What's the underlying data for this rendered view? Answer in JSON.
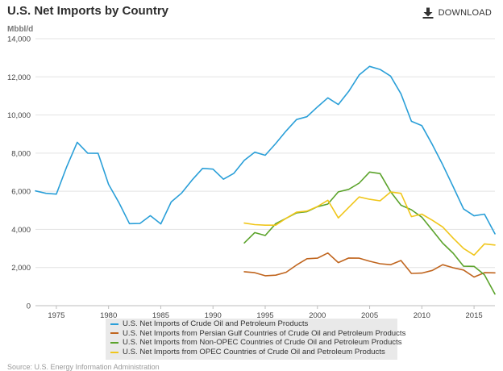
{
  "header": {
    "title": "U.S. Net Imports by Country",
    "download_label": "DOWNLOAD"
  },
  "footer": {
    "source": "Source: U.S. Energy Information Administration"
  },
  "chart_data": {
    "type": "line",
    "ylabel": "Mbbl/d",
    "xlim": [
      1973,
      2017
    ],
    "ylim": [
      0,
      14000
    ],
    "x_ticks": [
      1975,
      1980,
      1985,
      1990,
      1995,
      2000,
      2005,
      2010,
      2015
    ],
    "y_ticks": [
      0,
      2000,
      4000,
      6000,
      8000,
      10000,
      12000,
      14000
    ],
    "y_tick_labels": [
      "0",
      "2,000",
      "4,000",
      "6,000",
      "8,000",
      "10,000",
      "12,000",
      "14,000"
    ],
    "grid": "horizontal",
    "legend_position": "bottom",
    "series": [
      {
        "name": "U.S. Net Imports of Crude Oil and Petroleum Products",
        "color": "#2a9fd8",
        "x": [
          1973,
          1974,
          1975,
          1976,
          1977,
          1978,
          1979,
          1980,
          1981,
          1982,
          1983,
          1984,
          1985,
          1986,
          1987,
          1988,
          1989,
          1990,
          1991,
          1992,
          1993,
          1994,
          1995,
          1996,
          1997,
          1998,
          1999,
          2000,
          2001,
          2002,
          2003,
          2004,
          2005,
          2006,
          2007,
          2008,
          2009,
          2010,
          2011,
          2012,
          2013,
          2014,
          2015,
          2016,
          2017
        ],
        "values": [
          6020,
          5890,
          5850,
          7300,
          8570,
          8000,
          7990,
          6360,
          5400,
          4300,
          4310,
          4720,
          4290,
          5440,
          5910,
          6590,
          7200,
          7160,
          6630,
          6940,
          7620,
          8050,
          7890,
          8500,
          9160,
          9760,
          9910,
          10420,
          10900,
          10550,
          11240,
          12100,
          12550,
          12390,
          12040,
          11110,
          9670,
          9440,
          8450,
          7390,
          6240,
          5070,
          4710,
          4800,
          3770
        ]
      },
      {
        "name": "U.S. Net Imports from Persian Gulf Countries of Crude Oil and Petroleum Products",
        "color": "#c0651e",
        "x": [
          1993,
          1994,
          1995,
          1996,
          1997,
          1998,
          1999,
          2000,
          2001,
          2002,
          2003,
          2004,
          2005,
          2006,
          2007,
          2008,
          2009,
          2010,
          2011,
          2012,
          2013,
          2014,
          2015,
          2016,
          2017
        ],
        "values": [
          1780,
          1730,
          1570,
          1600,
          1750,
          2130,
          2460,
          2490,
          2760,
          2260,
          2500,
          2490,
          2330,
          2200,
          2150,
          2370,
          1690,
          1710,
          1850,
          2150,
          1990,
          1870,
          1500,
          1730,
          1720
        ]
      },
      {
        "name": "U.S. Net Imports from Non-OPEC Countries of Crude Oil and Petroleum Products",
        "color": "#5ba32b",
        "x": [
          1993,
          1994,
          1995,
          1996,
          1997,
          1998,
          1999,
          2000,
          2001,
          2002,
          2003,
          2004,
          2005,
          2006,
          2007,
          2008,
          2009,
          2010,
          2011,
          2012,
          2013,
          2014,
          2015,
          2016,
          2017
        ],
        "values": [
          3290,
          3830,
          3680,
          4300,
          4580,
          4870,
          4930,
          5190,
          5330,
          5970,
          6100,
          6430,
          7010,
          6930,
          5980,
          5270,
          5030,
          4640,
          3960,
          3280,
          2750,
          2070,
          2060,
          1620,
          610
        ]
      },
      {
        "name": "U.S. Net Imports from OPEC Countries of Crude Oil and Petroleum Products",
        "color": "#f0c61b",
        "x": [
          1993,
          1994,
          1995,
          1996,
          1997,
          1998,
          1999,
          2000,
          2001,
          2002,
          2003,
          2004,
          2005,
          2006,
          2007,
          2008,
          2009,
          2010,
          2011,
          2012,
          2013,
          2014,
          2015,
          2016,
          2017
        ],
        "values": [
          4330,
          4250,
          4220,
          4220,
          4580,
          4900,
          4960,
          5200,
          5530,
          4600,
          5150,
          5700,
          5580,
          5500,
          5960,
          5890,
          4670,
          4800,
          4480,
          4130,
          3540,
          3000,
          2650,
          3240,
          3180
        ]
      }
    ]
  }
}
